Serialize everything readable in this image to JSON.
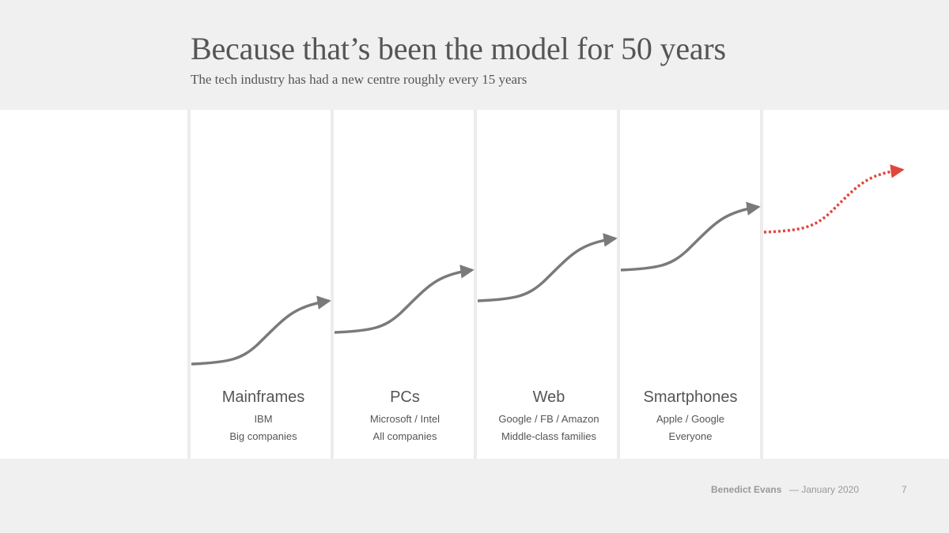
{
  "title": "Because that’s been the model for 50 years",
  "subtitle": "The tech industry has had a new centre roughly every 15 years",
  "eras": [
    {
      "name": "Mainframes",
      "players": "IBM",
      "audience": "Big companies"
    },
    {
      "name": "PCs",
      "players": "Microsoft / Intel",
      "audience": "All companies"
    },
    {
      "name": "Web",
      "players": "Google / FB / Amazon",
      "audience": "Middle-class families"
    },
    {
      "name": "Smartphones",
      "players": "Apple / Google",
      "audience": "Everyone"
    }
  ],
  "colors": {
    "curve": "#7a7a7a",
    "future_curve": "#e0463c"
  },
  "footer": {
    "author": "Benedict Evans",
    "date": "— January 2020",
    "page": "7"
  }
}
